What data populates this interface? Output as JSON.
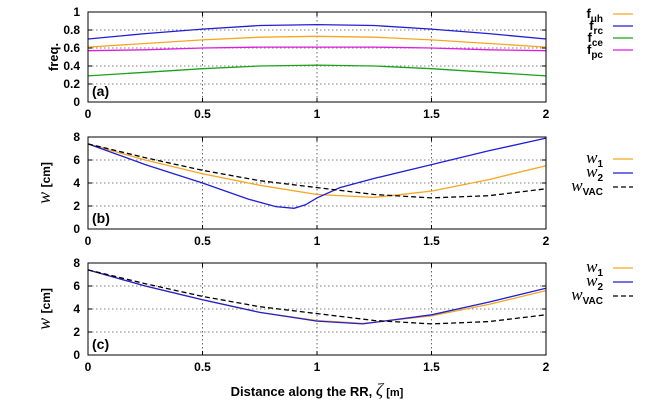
{
  "chart_data": [
    {
      "panel": "(a)",
      "type": "line",
      "ylabel": "freq.",
      "xlim": [
        0,
        2
      ],
      "ylim": [
        0,
        1
      ],
      "xticks": [
        "0",
        "0.5",
        "1",
        "1.5",
        "2"
      ],
      "yticks": [
        "0",
        "0.2",
        "0.4",
        "0.6",
        "0.8",
        "1"
      ],
      "legend_position": "right",
      "series": [
        {
          "name": "f_uh",
          "main": "f",
          "sub": "uh",
          "color": "#f5a623",
          "dash": "",
          "points": [
            [
              0,
              0.61
            ],
            [
              0.25,
              0.65
            ],
            [
              0.5,
              0.69
            ],
            [
              0.75,
              0.72
            ],
            [
              1,
              0.73
            ],
            [
              1.25,
              0.72
            ],
            [
              1.5,
              0.69
            ],
            [
              1.75,
              0.65
            ],
            [
              2,
              0.61
            ]
          ]
        },
        {
          "name": "f_rc",
          "main": "f",
          "sub": "rc",
          "color": "#1f1fd6",
          "dash": "",
          "points": [
            [
              0,
              0.7
            ],
            [
              0.25,
              0.76
            ],
            [
              0.5,
              0.81
            ],
            [
              0.75,
              0.85
            ],
            [
              1,
              0.86
            ],
            [
              1.25,
              0.85
            ],
            [
              1.5,
              0.81
            ],
            [
              1.75,
              0.76
            ],
            [
              2,
              0.7
            ]
          ]
        },
        {
          "name": "f_ce",
          "main": "f",
          "sub": "ce",
          "color": "#1aa31a",
          "dash": "",
          "points": [
            [
              0,
              0.29
            ],
            [
              0.25,
              0.33
            ],
            [
              0.5,
              0.37
            ],
            [
              0.75,
              0.4
            ],
            [
              1,
              0.41
            ],
            [
              1.25,
              0.4
            ],
            [
              1.5,
              0.37
            ],
            [
              1.75,
              0.33
            ],
            [
              2,
              0.29
            ]
          ]
        },
        {
          "name": "f_pc",
          "main": "f",
          "sub": "pc",
          "color": "#e01be0",
          "dash": "",
          "points": [
            [
              0,
              0.57
            ],
            [
              0.25,
              0.58
            ],
            [
              0.5,
              0.6
            ],
            [
              0.75,
              0.61
            ],
            [
              1,
              0.61
            ],
            [
              1.25,
              0.61
            ],
            [
              1.5,
              0.6
            ],
            [
              1.75,
              0.58
            ],
            [
              2,
              0.57
            ]
          ]
        }
      ]
    },
    {
      "panel": "(b)",
      "type": "line",
      "ylabel": "w [cm]",
      "xlim": [
        0,
        2
      ],
      "ylim": [
        0,
        8
      ],
      "xticks": [
        "0",
        "0.5",
        "1",
        "1.5",
        "2"
      ],
      "yticks": [
        "0",
        "2",
        "4",
        "6",
        "8"
      ],
      "legend_position": "right",
      "series": [
        {
          "name": "w_1",
          "main": "w",
          "sub": "1",
          "color": "#f5a623",
          "dash": "",
          "points": [
            [
              0,
              7.4
            ],
            [
              0.25,
              6.0
            ],
            [
              0.5,
              4.8
            ],
            [
              0.75,
              3.8
            ],
            [
              1,
              3.0
            ],
            [
              1.25,
              2.75
            ],
            [
              1.5,
              3.3
            ],
            [
              1.75,
              4.3
            ],
            [
              2,
              5.5
            ]
          ]
        },
        {
          "name": "w_2",
          "main": "w",
          "sub": "2",
          "color": "#1f1fd6",
          "dash": "",
          "points": [
            [
              0,
              7.4
            ],
            [
              0.25,
              5.6
            ],
            [
              0.5,
              4.0
            ],
            [
              0.7,
              2.6
            ],
            [
              0.82,
              1.95
            ],
            [
              0.9,
              1.8
            ],
            [
              0.95,
              2.1
            ],
            [
              1,
              2.7
            ],
            [
              1.1,
              3.6
            ],
            [
              1.25,
              4.4
            ],
            [
              1.5,
              5.6
            ],
            [
              1.75,
              6.8
            ],
            [
              2,
              7.9
            ]
          ]
        },
        {
          "name": "w_VAC",
          "main": "w",
          "sub": "VAC",
          "color": "#000000",
          "dash": "5 3",
          "points": [
            [
              0,
              7.4
            ],
            [
              0.25,
              6.2
            ],
            [
              0.5,
              5.1
            ],
            [
              0.75,
              4.2
            ],
            [
              1,
              3.6
            ],
            [
              1.25,
              3.0
            ],
            [
              1.5,
              2.7
            ],
            [
              1.75,
              2.9
            ],
            [
              2,
              3.5
            ]
          ]
        }
      ]
    },
    {
      "panel": "(c)",
      "type": "line",
      "ylabel": "w [cm]",
      "xlabel": "Distance along the RR, ζ [m]",
      "xlim": [
        0,
        2
      ],
      "ylim": [
        0,
        8
      ],
      "xticks": [
        "0",
        "0.5",
        "1",
        "1.5",
        "2"
      ],
      "yticks": [
        "0",
        "2",
        "4",
        "6",
        "8"
      ],
      "legend_position": "right",
      "series": [
        {
          "name": "w_1",
          "main": "w",
          "sub": "1",
          "color": "#f5a623",
          "dash": "",
          "points": [
            [
              0,
              7.4
            ],
            [
              0.25,
              6.0
            ],
            [
              0.5,
              4.8
            ],
            [
              0.75,
              3.7
            ],
            [
              1,
              3.0
            ],
            [
              1.2,
              2.75
            ],
            [
              1.5,
              3.4
            ],
            [
              1.75,
              4.4
            ],
            [
              2,
              5.6
            ]
          ]
        },
        {
          "name": "w_2",
          "main": "w",
          "sub": "2",
          "color": "#1f1fd6",
          "dash": "",
          "points": [
            [
              0,
              7.4
            ],
            [
              0.25,
              6.0
            ],
            [
              0.5,
              4.8
            ],
            [
              0.75,
              3.7
            ],
            [
              1,
              2.95
            ],
            [
              1.2,
              2.7
            ],
            [
              1.5,
              3.5
            ],
            [
              1.75,
              4.6
            ],
            [
              2,
              5.8
            ]
          ]
        },
        {
          "name": "w_VAC",
          "main": "w",
          "sub": "VAC",
          "color": "#000000",
          "dash": "5 3",
          "points": [
            [
              0,
              7.4
            ],
            [
              0.25,
              6.2
            ],
            [
              0.5,
              5.1
            ],
            [
              0.75,
              4.2
            ],
            [
              1,
              3.6
            ],
            [
              1.25,
              3.0
            ],
            [
              1.5,
              2.7
            ],
            [
              1.75,
              2.9
            ],
            [
              2,
              3.5
            ]
          ]
        }
      ]
    }
  ]
}
